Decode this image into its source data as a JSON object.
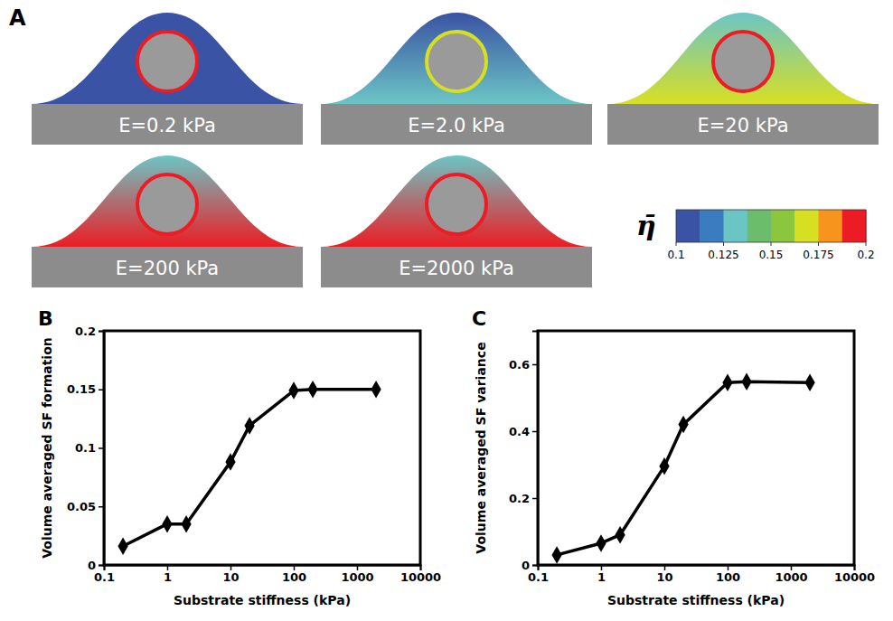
{
  "chart_data": [
    {
      "type": "contour",
      "panel": "A",
      "panels": [
        {
          "label": "E=0.2 kPa",
          "top": 0.1,
          "base": 0.1,
          "nucleus_edge": 0.2
        },
        {
          "label": "E=2.0 kPa",
          "top": 0.1,
          "base": 0.125,
          "nucleus_edge": 0.175
        },
        {
          "label": "E=20 kPa",
          "top": 0.125,
          "base": 0.175,
          "nucleus_edge": 0.2
        },
        {
          "label": "E=200 kPa",
          "top": 0.125,
          "base": 0.2,
          "nucleus_edge": 0.2
        },
        {
          "label": "E=2000 kPa",
          "top": 0.125,
          "base": 0.2,
          "nucleus_edge": 0.2
        }
      ],
      "colorbar_title": "η̄",
      "colorbar_range": [
        0.1,
        0.2
      ],
      "colorbar_ticks": [
        0.1,
        0.125,
        0.15,
        0.175,
        0.2
      ],
      "colors": [
        "#3a53a4",
        "#3b7bbf",
        "#6cc5c5",
        "#6bbd6b",
        "#8cc63f",
        "#d7df23",
        "#f7941d",
        "#ed1c24"
      ]
    },
    {
      "type": "line",
      "panel": "B",
      "x_label": "Substrate stiffness (kPa)",
      "y_label": "Volume averaged SF formation",
      "x": [
        0.2,
        1,
        2,
        10,
        20,
        100,
        200,
        2000
      ],
      "values": [
        0.016,
        0.035,
        0.035,
        0.088,
        0.119,
        0.149,
        0.15,
        0.15
      ],
      "xlim": [
        0.1,
        10000
      ],
      "xticks": [
        0.1,
        1,
        10,
        100,
        1000,
        10000
      ],
      "ylim": [
        0,
        0.2
      ],
      "yticks": [
        0,
        0.05,
        0.1,
        0.15,
        0.2
      ],
      "log": "x",
      "color": "#000000",
      "marker": "diamond"
    },
    {
      "type": "line",
      "panel": "C",
      "x_label": "Substrate stiffness (kPa)",
      "y_label": "Volume averaged SF variance",
      "x": [
        0.2,
        1,
        2,
        10,
        20,
        100,
        200,
        2000
      ],
      "values": [
        0.03,
        0.065,
        0.09,
        0.295,
        0.42,
        0.545,
        0.548,
        0.545
      ],
      "xlim": [
        0.1,
        10000
      ],
      "xticks": [
        0.1,
        1,
        10,
        100,
        1000,
        10000
      ],
      "ylim": [
        0,
        0.7
      ],
      "yticks": [
        0,
        0.2,
        0.4,
        0.6
      ],
      "log": "x",
      "color": "#000000",
      "marker": "diamond"
    }
  ]
}
